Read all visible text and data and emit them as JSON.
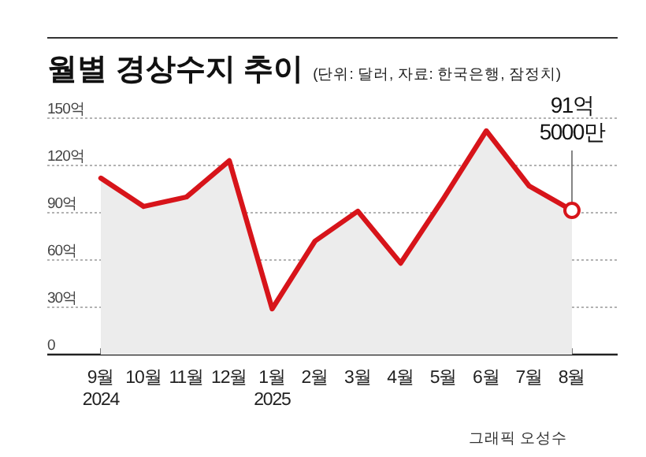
{
  "chart_data": {
    "type": "area",
    "title": "월별 경상수지 추이",
    "subtitle": "(단위: 달러, 자료: 한국은행, 잠정치)",
    "categories": [
      "9월\n2024",
      "10월",
      "11월",
      "12월",
      "1월\n2025",
      "2월",
      "3월",
      "4월",
      "5월",
      "6월",
      "7월",
      "8월"
    ],
    "series": [
      {
        "color": "#d7141a",
        "values": [
          112,
          94,
          100,
          123,
          29,
          72,
          91,
          58,
          99,
          142,
          107,
          91.5
        ]
      }
    ],
    "ylim": [
      0,
      150
    ],
    "yticks": [
      0,
      {
        "value": 30,
        "label": "30억"
      },
      {
        "value": 60,
        "label": "60억"
      },
      {
        "value": 90,
        "label": "90억"
      },
      {
        "value": 120,
        "label": "120억"
      },
      {
        "value": 150,
        "label": "150억"
      }
    ],
    "grid": "y",
    "line_style": "solid",
    "annotations": [
      {
        "text": "91억\n5000만",
        "x": "8월",
        "y": 91.5
      },
      "그래픽 오성수"
    ]
  }
}
